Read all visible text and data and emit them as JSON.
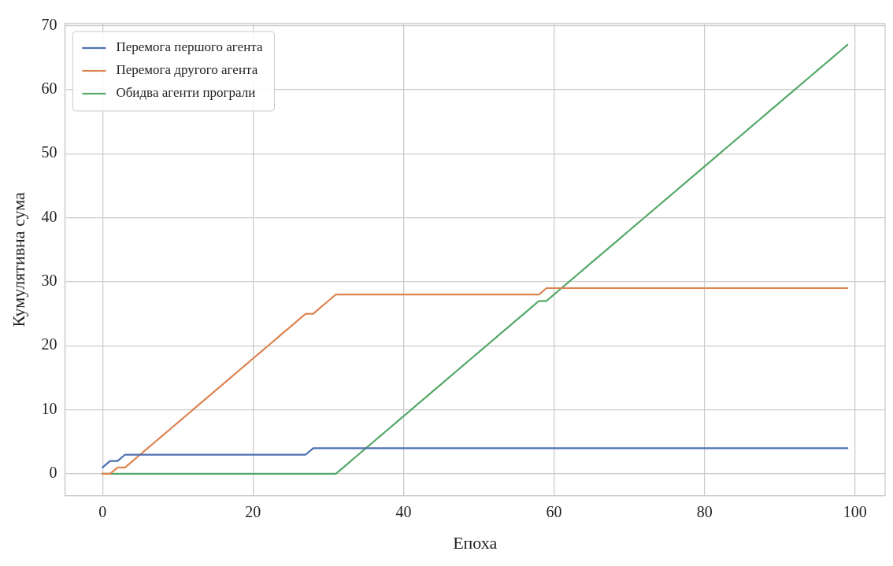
{
  "chart_data": {
    "type": "line",
    "xlabel": "Епоха",
    "ylabel": "Кумулятивна сума",
    "x": [
      0,
      1,
      2,
      3,
      4,
      5,
      6,
      7,
      8,
      9,
      10,
      11,
      12,
      13,
      14,
      15,
      16,
      17,
      18,
      19,
      20,
      21,
      22,
      23,
      24,
      25,
      26,
      27,
      28,
      29,
      30,
      31,
      32,
      33,
      34,
      35,
      36,
      37,
      38,
      39,
      40,
      41,
      42,
      43,
      44,
      45,
      46,
      47,
      48,
      49,
      50,
      51,
      52,
      53,
      54,
      55,
      56,
      57,
      58,
      59,
      60,
      61,
      62,
      63,
      64,
      65,
      66,
      67,
      68,
      69,
      70,
      71,
      72,
      73,
      74,
      75,
      76,
      77,
      78,
      79,
      80,
      81,
      82,
      83,
      84,
      85,
      86,
      87,
      88,
      89,
      90,
      91,
      92,
      93,
      94,
      95,
      96,
      97,
      98,
      99
    ],
    "series": [
      {
        "name": "Перемога першого агента",
        "color": "#4c72b0",
        "values": [
          1,
          2,
          2,
          3,
          3,
          3,
          3,
          3,
          3,
          3,
          3,
          3,
          3,
          3,
          3,
          3,
          3,
          3,
          3,
          3,
          3,
          3,
          3,
          3,
          3,
          3,
          3,
          3,
          4,
          4,
          4,
          4,
          4,
          4,
          4,
          4,
          4,
          4,
          4,
          4,
          4,
          4,
          4,
          4,
          4,
          4,
          4,
          4,
          4,
          4,
          4,
          4,
          4,
          4,
          4,
          4,
          4,
          4,
          4,
          4,
          4,
          4,
          4,
          4,
          4,
          4,
          4,
          4,
          4,
          4,
          4,
          4,
          4,
          4,
          4,
          4,
          4,
          4,
          4,
          4,
          4,
          4,
          4,
          4,
          4,
          4,
          4,
          4,
          4,
          4,
          4,
          4,
          4,
          4,
          4,
          4,
          4,
          4,
          4,
          4
        ]
      },
      {
        "name": "Перемога другого агента",
        "color": "#dd8452",
        "values": [
          0,
          0,
          1,
          1,
          2,
          3,
          4,
          5,
          6,
          7,
          8,
          9,
          10,
          11,
          12,
          13,
          14,
          15,
          16,
          17,
          18,
          19,
          20,
          21,
          22,
          23,
          24,
          25,
          25,
          26,
          27,
          28,
          28,
          28,
          28,
          28,
          28,
          28,
          28,
          28,
          28,
          28,
          28,
          28,
          28,
          28,
          28,
          28,
          28,
          28,
          28,
          28,
          28,
          28,
          28,
          28,
          28,
          28,
          28,
          29,
          29,
          29,
          29,
          29,
          29,
          29,
          29,
          29,
          29,
          29,
          29,
          29,
          29,
          29,
          29,
          29,
          29,
          29,
          29,
          29,
          29,
          29,
          29,
          29,
          29,
          29,
          29,
          29,
          29,
          29,
          29,
          29,
          29,
          29,
          29,
          29,
          29,
          29,
          29,
          29
        ]
      },
      {
        "name": "Обидва агенти програли",
        "color": "#55a868",
        "values": [
          0,
          0,
          0,
          0,
          0,
          0,
          0,
          0,
          0,
          0,
          0,
          0,
          0,
          0,
          0,
          0,
          0,
          0,
          0,
          0,
          0,
          0,
          0,
          0,
          0,
          0,
          0,
          0,
          0,
          0,
          0,
          0,
          1,
          2,
          3,
          4,
          5,
          6,
          7,
          8,
          9,
          10,
          11,
          12,
          13,
          14,
          15,
          16,
          17,
          18,
          19,
          20,
          21,
          22,
          23,
          24,
          25,
          26,
          27,
          27,
          28,
          29,
          30,
          31,
          32,
          33,
          34,
          35,
          36,
          37,
          38,
          39,
          40,
          41,
          42,
          43,
          44,
          45,
          46,
          47,
          48,
          49,
          50,
          51,
          52,
          53,
          54,
          55,
          56,
          57,
          58,
          59,
          60,
          61,
          62,
          63,
          64,
          65,
          66,
          67
        ]
      }
    ],
    "xlim": [
      -5,
      104
    ],
    "xticks": [
      0,
      20,
      40,
      60,
      80,
      100
    ],
    "ylim": [
      -3.4,
      70.3
    ],
    "yticks": [
      0,
      10,
      20,
      30,
      40,
      50,
      60,
      70
    ],
    "grid": true,
    "legend": "top left",
    "marker": "none",
    "line_style": "solid"
  }
}
